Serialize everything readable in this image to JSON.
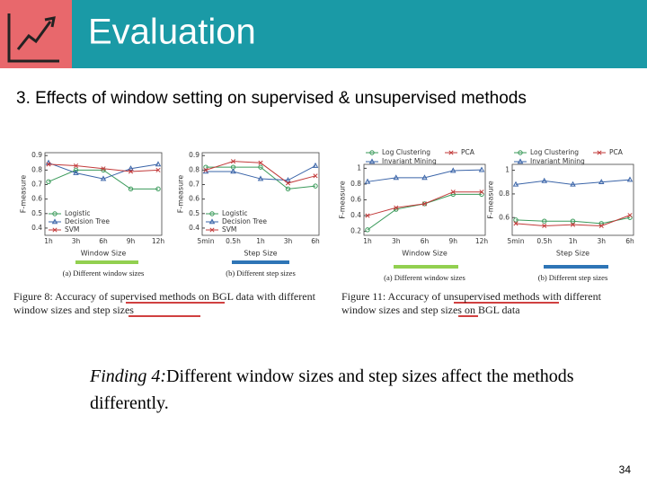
{
  "header": {
    "title": "Evaluation"
  },
  "subtitle": "3. Effects of window setting on supervised & unsupervised methods",
  "figures": [
    {
      "caption": "Figure 8: Accuracy of supervised methods on BGL data with different window sizes and step sizes",
      "charts": [
        {
          "type": "line",
          "subcaption": "(a) Different window sizes",
          "xlabel": "Window Size",
          "ylabel": "F-measure",
          "categories": [
            "1h",
            "3h",
            "6h",
            "9h",
            "12h"
          ],
          "ylim": [
            0.35,
            0.92
          ],
          "yticks": [
            0.4,
            0.5,
            0.6,
            0.7,
            0.8,
            0.9
          ],
          "legend": "lower left",
          "series": [
            {
              "name": "Logistic",
              "color": "#3a9a5a",
              "values": [
                0.72,
                0.8,
                0.8,
                0.67,
                0.67
              ]
            },
            {
              "name": "Decision Tree",
              "color": "#3a64a8",
              "values": [
                0.85,
                0.78,
                0.74,
                0.81,
                0.84
              ]
            },
            {
              "name": "SVM",
              "color": "#c23a3a",
              "values": [
                0.84,
                0.83,
                0.81,
                0.79,
                0.8
              ]
            }
          ]
        },
        {
          "type": "line",
          "subcaption": "(b) Different step sizes",
          "xlabel": "Step Size",
          "ylabel": "F-measure",
          "categories": [
            "5min",
            "0.5h",
            "1h",
            "3h",
            "6h"
          ],
          "ylim": [
            0.35,
            0.92
          ],
          "yticks": [
            0.4,
            0.5,
            0.6,
            0.7,
            0.8,
            0.9
          ],
          "legend": "lower left",
          "series": [
            {
              "name": "Logistic",
              "color": "#3a9a5a",
              "values": [
                0.82,
                0.82,
                0.82,
                0.67,
                0.69
              ]
            },
            {
              "name": "Decision Tree",
              "color": "#3a64a8",
              "values": [
                0.79,
                0.79,
                0.74,
                0.73,
                0.83
              ]
            },
            {
              "name": "SVM",
              "color": "#c23a3a",
              "values": [
                0.8,
                0.86,
                0.85,
                0.71,
                0.76
              ]
            }
          ]
        }
      ]
    },
    {
      "caption": "Figure 11: Accuracy of unsupervised methods with different window sizes and step sizes on BGL data",
      "charts": [
        {
          "type": "line",
          "subcaption": "(a) Different window sizes",
          "xlabel": "Window Size",
          "ylabel": "F-measure",
          "categories": [
            "1h",
            "3h",
            "6h",
            "9h",
            "12h"
          ],
          "ylim": [
            0.15,
            1.05
          ],
          "yticks": [
            0.2,
            0.4,
            0.6,
            0.8,
            1
          ],
          "legend": "top",
          "series": [
            {
              "name": "Log Clustering",
              "color": "#3a9a5a",
              "values": [
                0.22,
                0.48,
                0.55,
                0.67,
                0.67
              ]
            },
            {
              "name": "PCA",
              "color": "#c23a3a",
              "values": [
                0.4,
                0.5,
                0.55,
                0.7,
                0.7
              ]
            },
            {
              "name": "Invariant Mining",
              "color": "#3a64a8",
              "values": [
                0.83,
                0.88,
                0.88,
                0.97,
                0.98
              ]
            }
          ]
        },
        {
          "type": "line",
          "subcaption": "(b) Different step sizes",
          "xlabel": "Step Size",
          "ylabel": "F-measure",
          "categories": [
            "5min",
            "0.5h",
            "1h",
            "3h",
            "6h"
          ],
          "ylim": [
            0.45,
            1.05
          ],
          "yticks": [
            0.6,
            0.8,
            1
          ],
          "legend": "top",
          "series": [
            {
              "name": "Log Clustering",
              "color": "#3a9a5a",
              "values": [
                0.58,
                0.57,
                0.57,
                0.55,
                0.6
              ]
            },
            {
              "name": "PCA",
              "color": "#c23a3a",
              "values": [
                0.55,
                0.53,
                0.54,
                0.53,
                0.62
              ]
            },
            {
              "name": "Invariant Mining",
              "color": "#3a64a8",
              "values": [
                0.88,
                0.91,
                0.88,
                0.9,
                0.92
              ]
            }
          ]
        }
      ]
    }
  ],
  "finding": {
    "label": "Finding 4:",
    "text": "Different window sizes and step sizes affect the methods differently."
  },
  "page_number": "34"
}
